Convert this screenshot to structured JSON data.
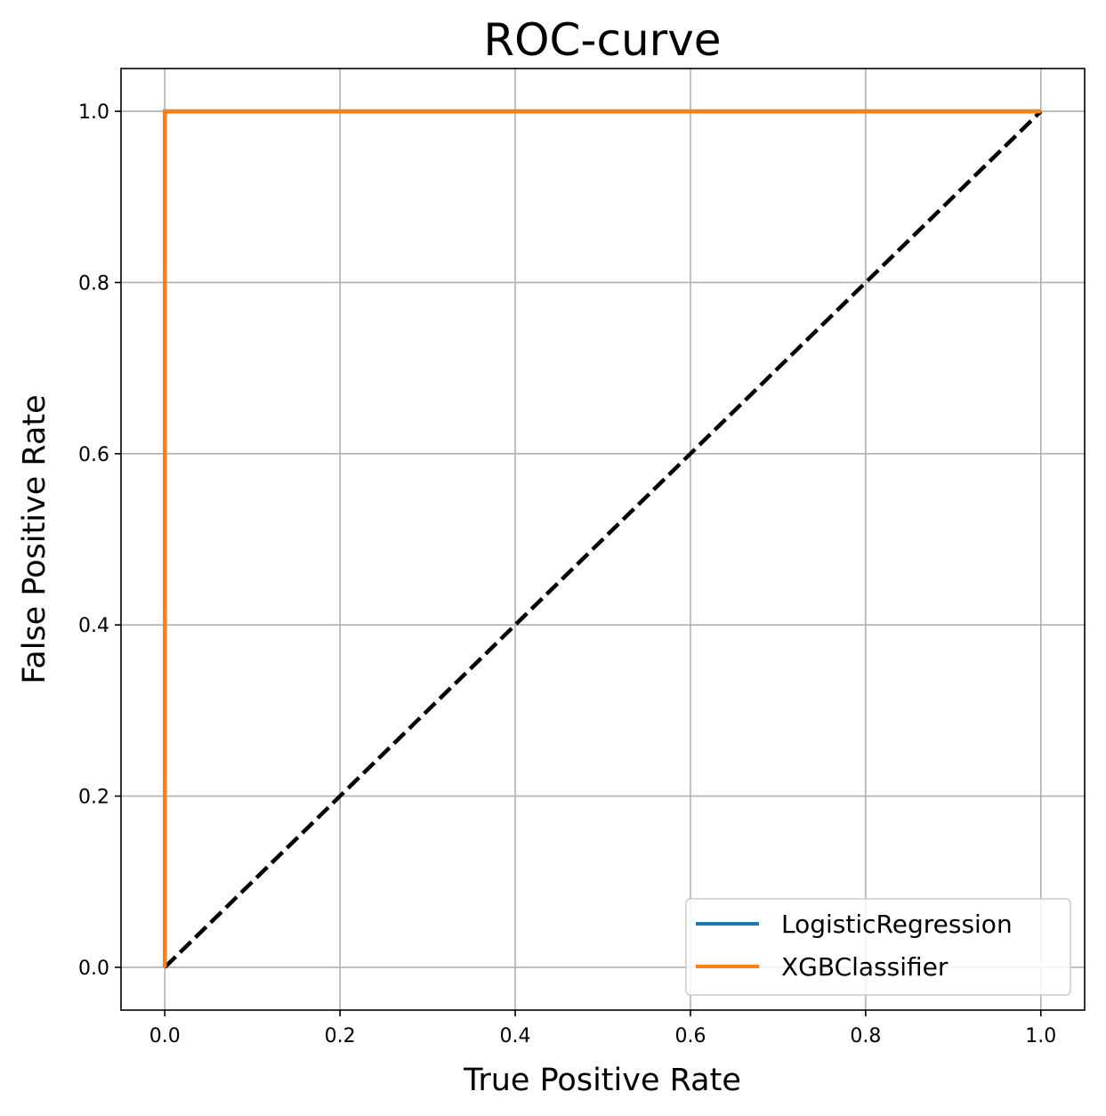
{
  "chart_data": {
    "type": "line",
    "title": "ROC-curve",
    "xlabel": "True Positive Rate",
    "ylabel": "False Positive Rate",
    "xlim": [
      -0.05,
      1.05
    ],
    "ylim": [
      -0.05,
      1.05
    ],
    "xticks": [
      0.0,
      0.2,
      0.4,
      0.6,
      0.8,
      1.0
    ],
    "yticks": [
      0.0,
      0.2,
      0.4,
      0.6,
      0.8,
      1.0
    ],
    "xtick_labels": [
      "0.0",
      "0.2",
      "0.4",
      "0.6",
      "0.8",
      "1.0"
    ],
    "ytick_labels": [
      "0.0",
      "0.2",
      "0.4",
      "0.6",
      "0.8",
      "1.0"
    ],
    "grid": true,
    "legend_position": "bottom-right",
    "series": [
      {
        "name": "LogisticRegression",
        "color": "#1f77b4",
        "x": [
          0.0,
          0.0,
          1.0
        ],
        "y": [
          0.0,
          1.0,
          1.0
        ]
      },
      {
        "name": "XGBClassifier",
        "color": "#ff7f0e",
        "x": [
          0.0,
          0.0,
          1.0
        ],
        "y": [
          0.0,
          1.0,
          1.0
        ]
      }
    ],
    "reference_line": {
      "style": "dashed",
      "color": "#000000",
      "x": [
        0.0,
        1.0
      ],
      "y": [
        0.0,
        1.0
      ]
    }
  }
}
